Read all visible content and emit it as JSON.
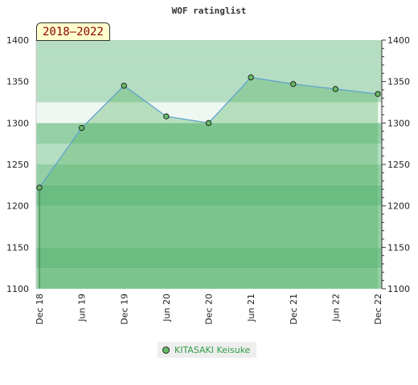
{
  "chart_data": {
    "type": "area",
    "title": "WOF ratinglist",
    "period_label": "2018–2022",
    "categories": [
      "Dec 18",
      "Jun 19",
      "Dec 19",
      "Jun 20",
      "Dec 20",
      "Jun 21",
      "Dec 21",
      "Jun 22",
      "Dec 22"
    ],
    "series": [
      {
        "name": "KITASAKI Keisuke",
        "values": [
          1222,
          1294,
          1345,
          1308,
          1300,
          1355,
          1347,
          1341,
          1335
        ]
      }
    ],
    "ylim": [
      1100,
      1400
    ],
    "yticks": [
      1100,
      1150,
      1200,
      1250,
      1300,
      1350,
      1400
    ],
    "y_axis_both_sides": true,
    "grid": true,
    "legend_position": "bottom",
    "colors": {
      "line": "#5aa0d0",
      "marker": "#66bb66",
      "area": "#4daf5f",
      "band_light": "#b5ddc1",
      "band_mid": "#94cfa6",
      "band_dark": "#7ac494",
      "band_pale": "#eef7f0",
      "legend_text": "#2f9e44",
      "badge_text": "#8b0000",
      "badge_bg": "#ffffcc"
    }
  }
}
